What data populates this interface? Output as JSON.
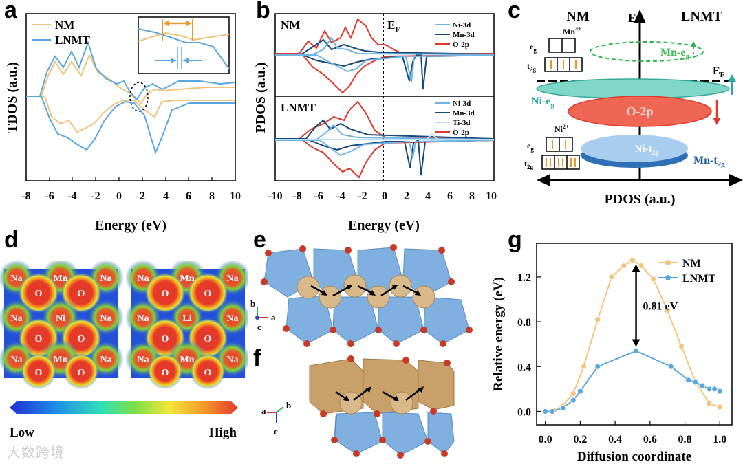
{
  "panel_labels": {
    "a": "a",
    "b": "b",
    "c": "c",
    "d": "d",
    "e": "e",
    "f": "f",
    "g": "g"
  },
  "colors": {
    "nm": "#f0c27a",
    "lnmt": "#5aa7df",
    "ni": "#6fb4e6",
    "mn": "#17497a",
    "ti": "#bcdcf2",
    "o": "#e0382c"
  },
  "panel_a": {
    "ylabel": "TDOS (a.u.)",
    "xlabel": "Energy (eV)",
    "ticks": [
      "-8",
      "-6",
      "-4",
      "-2",
      "0",
      "2",
      "4",
      "6",
      "8",
      "10"
    ],
    "legend": [
      "NM",
      "LNMT"
    ]
  },
  "panel_b": {
    "ylabel": "PDOS (a.u.)",
    "xlabel": "Energy (eV)",
    "ticks": [
      "-10",
      "-8",
      "-6",
      "-4",
      "-2",
      "0",
      "2",
      "4",
      "6",
      "8",
      "10"
    ],
    "fermi": "E",
    "fermi_sub": "F",
    "top": {
      "title": "NM",
      "legend": [
        "Ni-3d",
        "Mn-3d",
        "O-2p"
      ]
    },
    "bottom": {
      "title": "LNMT",
      "legend": [
        "Ni-3d",
        "Mn-3d",
        "Ti-3d",
        "O-2p"
      ]
    }
  },
  "panel_c": {
    "nm": "NM",
    "lnmt": "LNMT",
    "e_axis": "E",
    "xlabel": "PDOS (a.u.)",
    "mn4": "Mn",
    "mn4_sup": "4+",
    "ni2": "Ni",
    "ni2_sup": "2+",
    "eg": "e",
    "eg_sub": "g",
    "t2g": "t",
    "t2g_sub": "2g",
    "mn_eg": "Mn-e",
    "mn_eg_sub": "g",
    "ef": "E",
    "ef_sub": "F",
    "ni_eg": "Ni-e",
    "ni_eg_sub": "g",
    "o2p": "O-2p",
    "ni_t2g": "Ni-t",
    "ni_t2g_sub": "2g",
    "mn_t2g": "Mn-t",
    "mn_t2g_sub": "2g"
  },
  "panel_d": {
    "left_labels": [
      "Na",
      "Mn",
      "Na",
      "O",
      "O",
      "Na",
      "Ni",
      "Na",
      "O",
      "O",
      "Na",
      "Mn",
      "Na",
      "O",
      "O"
    ],
    "right_labels": [
      "Na",
      "Mn",
      "Na",
      "O",
      "O",
      "Na",
      "Li",
      "Na",
      "O",
      "O",
      "Na",
      "Mn",
      "Na",
      "O",
      "O"
    ],
    "low": "Low",
    "high": "High"
  },
  "panel_e": {
    "axes": [
      "b",
      "a",
      "c"
    ]
  },
  "panel_f": {
    "axes": [
      "a",
      "b",
      "c"
    ]
  },
  "chart_data": {
    "type": "line",
    "title": "",
    "xlabel": "Diffusion coordinate",
    "ylabel": "Relative energy (eV)",
    "xlim": [
      -0.05,
      1.07
    ],
    "ylim": [
      -0.12,
      1.5
    ],
    "xticks": [
      "0.0",
      "0.2",
      "0.4",
      "0.6",
      "0.8",
      "1.0"
    ],
    "yticks": [
      "0.0",
      "0.4",
      "0.8",
      "1.2"
    ],
    "series": [
      {
        "name": "NM",
        "color": "#f5c37a",
        "x": [
          0.0,
          0.05,
          0.1,
          0.16,
          0.22,
          0.3,
          0.38,
          0.45,
          0.5,
          0.55,
          0.62,
          0.7,
          0.78,
          0.86,
          0.94,
          1.0
        ],
        "y": [
          0.0,
          0.01,
          0.05,
          0.16,
          0.4,
          0.82,
          1.2,
          1.3,
          1.35,
          1.3,
          1.18,
          0.9,
          0.58,
          0.27,
          0.07,
          0.04
        ]
      },
      {
        "name": "LNMT",
        "color": "#5aa7df",
        "x": [
          0.0,
          0.04,
          0.1,
          0.16,
          0.2,
          0.3,
          0.52,
          0.72,
          0.82,
          0.86,
          0.9,
          0.94,
          0.97,
          1.0
        ],
        "y": [
          0.0,
          0.0,
          0.03,
          0.1,
          0.18,
          0.4,
          0.54,
          0.4,
          0.28,
          0.26,
          0.23,
          0.2,
          0.2,
          0.18
        ]
      }
    ],
    "annotation": "0.81 eV"
  },
  "watermark": "大数跨境"
}
